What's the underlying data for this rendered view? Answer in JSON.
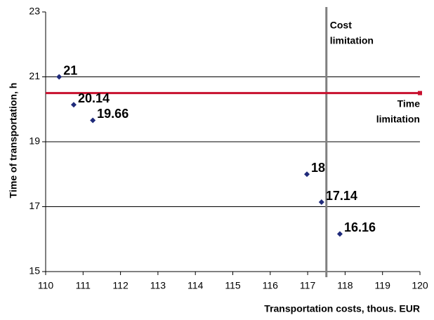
{
  "chart_data": {
    "type": "scatter",
    "x_label": "Transportation costs, thous. EUR",
    "y_label": "Time of transportation, h",
    "x": [
      110.36,
      110.75,
      111.26,
      116.98,
      117.37,
      117.86
    ],
    "values": [
      21,
      20.14,
      19.66,
      18,
      17.14,
      16.16
    ],
    "color": "#1f2a7a",
    "xlim": [
      110,
      120
    ],
    "ylim": [
      15,
      23
    ],
    "xticks": [
      110,
      111,
      112,
      113,
      114,
      115,
      116,
      117,
      118,
      119,
      120
    ],
    "yticks": [
      15,
      17,
      19,
      21,
      23
    ],
    "grid": true,
    "limits": [
      {
        "label_lines": [
          "Cost",
          "limitation"
        ],
        "x": 117.5,
        "color": "#808080"
      },
      {
        "label_lines": [
          "Time",
          "limitation"
        ],
        "y": 20.5,
        "color": "#c8102e"
      }
    ]
  }
}
